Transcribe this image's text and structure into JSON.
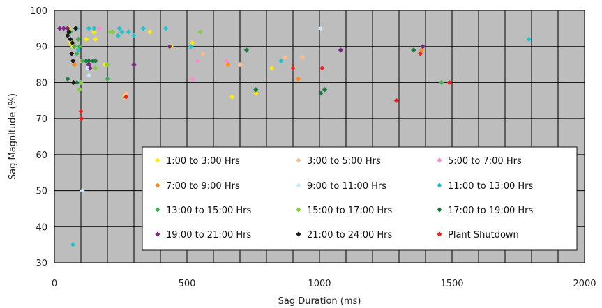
{
  "chart_data": {
    "type": "scatter",
    "title": "",
    "xlabel": "Sag Duration (ms)",
    "ylabel": "Sag Magnitude (%)",
    "xlim": [
      0,
      2000
    ],
    "ylim": [
      30,
      100
    ],
    "xticks": [
      0,
      500,
      1000,
      1500,
      2000
    ],
    "yticks": [
      30,
      40,
      50,
      60,
      70,
      80,
      90,
      100
    ],
    "grid": true,
    "legend_position": "inside bottom-right",
    "series": [
      {
        "name": "1:00 to 3:00 Hrs",
        "color": "#ffee00",
        "points": [
          [
            55,
            95
          ],
          [
            60,
            91
          ],
          [
            70,
            90
          ],
          [
            120,
            92
          ],
          [
            150,
            94
          ],
          [
            155,
            92
          ],
          [
            190,
            85
          ],
          [
            265,
            76
          ],
          [
            360,
            94
          ],
          [
            440,
            90
          ],
          [
            520,
            91
          ],
          [
            670,
            76
          ],
          [
            760,
            77
          ],
          [
            820,
            84
          ]
        ]
      },
      {
        "name": "3:00 to 5:00 Hrs",
        "color": "#ffbb88",
        "points": [
          [
            100,
            86
          ],
          [
            270,
            77
          ],
          [
            560,
            88
          ],
          [
            650,
            85
          ],
          [
            700,
            85
          ],
          [
            870,
            87
          ],
          [
            935,
            87
          ]
        ]
      },
      {
        "name": "5:00 to 7:00 Hrs",
        "color": "#ff8acd",
        "points": [
          [
            170,
            95
          ],
          [
            520,
            81
          ],
          [
            540,
            86
          ],
          [
            650,
            86
          ]
        ]
      },
      {
        "name": "7:00 to 9:00 Hrs",
        "color": "#ff8c1a",
        "points": [
          [
            75,
            85
          ],
          [
            655,
            85
          ],
          [
            920,
            81
          ],
          [
            1385,
            89
          ]
        ]
      },
      {
        "name": "9:00 to 11:00 Hrs",
        "color": "#cce8ff",
        "points": [
          [
            105,
            50
          ],
          [
            125,
            84
          ],
          [
            130,
            82
          ],
          [
            1005,
            95
          ]
        ]
      },
      {
        "name": "11:00 to 13:00 Hrs",
        "color": "#22c4cc",
        "points": [
          [
            70,
            35
          ],
          [
            85,
            95
          ],
          [
            90,
            89
          ],
          [
            130,
            95
          ],
          [
            150,
            95
          ],
          [
            240,
            93
          ],
          [
            245,
            95
          ],
          [
            255,
            94
          ],
          [
            280,
            94
          ],
          [
            300,
            93
          ],
          [
            335,
            95
          ],
          [
            420,
            95
          ],
          [
            515,
            90
          ],
          [
            855,
            86
          ],
          [
            1790,
            92
          ]
        ]
      },
      {
        "name": "13:00 to 15:00 Hrs",
        "color": "#3bb34a",
        "points": [
          [
            60,
            94
          ],
          [
            75,
            90
          ],
          [
            85,
            88
          ],
          [
            90,
            92
          ],
          [
            95,
            90
          ],
          [
            105,
            86
          ],
          [
            200,
            81
          ],
          [
            1460,
            80
          ]
        ]
      },
      {
        "name": "15:00 to 17:00 Hrs",
        "color": "#7fd13b",
        "points": [
          [
            95,
            78
          ],
          [
            100,
            80
          ],
          [
            155,
            84
          ],
          [
            200,
            85
          ],
          [
            210,
            94
          ],
          [
            220,
            94
          ],
          [
            550,
            94
          ]
        ]
      },
      {
        "name": "17:00 to 19:00 Hrs",
        "color": "#1a7a3e",
        "points": [
          [
            50,
            81
          ],
          [
            85,
            80
          ],
          [
            120,
            86
          ],
          [
            130,
            86
          ],
          [
            145,
            86
          ],
          [
            155,
            86
          ],
          [
            725,
            89
          ],
          [
            760,
            78
          ],
          [
            1005,
            77
          ],
          [
            1020,
            78
          ],
          [
            1355,
            89
          ]
        ]
      },
      {
        "name": "19:00 to 21:00 Hrs",
        "color": "#7a2a82",
        "points": [
          [
            20,
            95
          ],
          [
            35,
            95
          ],
          [
            50,
            95
          ],
          [
            130,
            85
          ],
          [
            135,
            84
          ],
          [
            300,
            85
          ],
          [
            435,
            90
          ],
          [
            1080,
            89
          ],
          [
            1390,
            90
          ]
        ]
      },
      {
        "name": "21:00 to 24:00 Hrs",
        "color": "#1a1a1a",
        "points": [
          [
            50,
            93
          ],
          [
            55,
            94
          ],
          [
            60,
            92
          ],
          [
            65,
            88
          ],
          [
            68,
            91
          ],
          [
            70,
            86
          ],
          [
            72,
            80
          ],
          [
            80,
            95
          ]
        ]
      },
      {
        "name": "Plant Shutdown",
        "color": "#ee2020",
        "points": [
          [
            100,
            72
          ],
          [
            102,
            70
          ],
          [
            270,
            76
          ],
          [
            900,
            84
          ],
          [
            1010,
            84
          ],
          [
            1290,
            75
          ],
          [
            1380,
            88
          ],
          [
            1490,
            80
          ]
        ]
      }
    ]
  }
}
